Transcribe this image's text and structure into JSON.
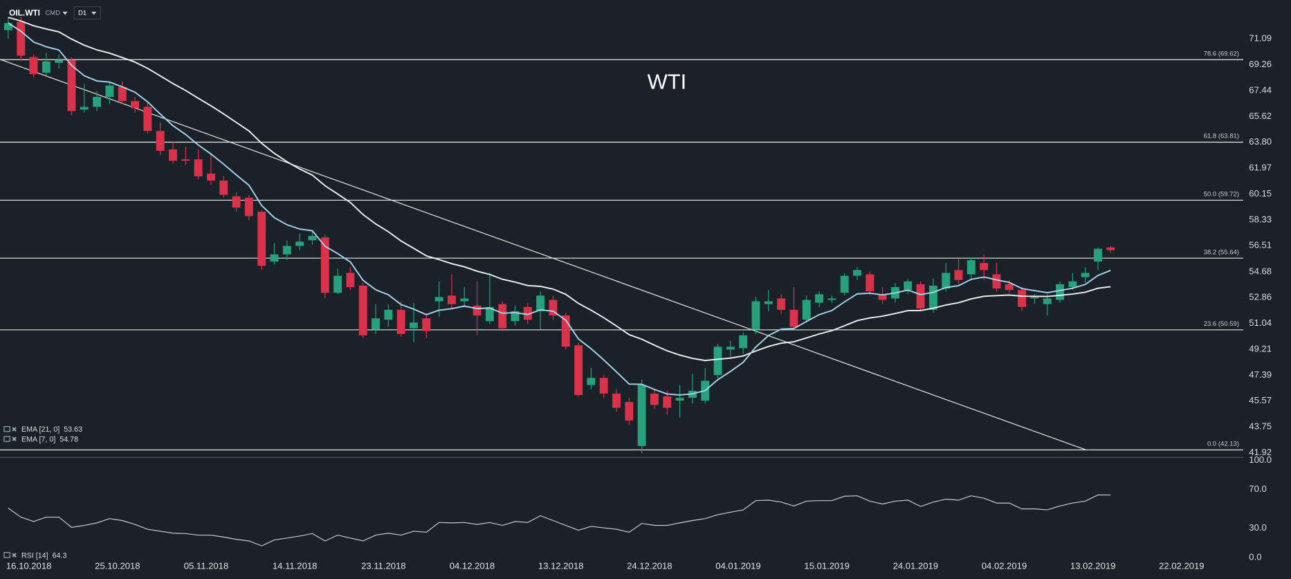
{
  "chart_data": [
    {
      "type": "candlestick",
      "title": "WTI",
      "symbol": "OIL.WTI",
      "market": "CMD",
      "timeframe": "D1",
      "up_color": "#26a17b",
      "down_color": "#d9324a",
      "open": [
        71.7,
        72.3,
        69.8,
        68.7,
        69.4,
        69.6,
        66.1,
        66.3,
        67.0,
        67.7,
        66.7,
        66.3,
        64.6,
        63.3,
        62.6,
        62.6,
        61.6,
        61.1,
        60.0,
        59.9,
        58.9,
        55.4,
        55.9,
        56.5,
        56.9,
        57.1,
        53.2,
        54.6,
        53.7,
        50.6,
        51.3,
        52.0,
        50.7,
        51.4,
        52.6,
        53.0,
        52.6,
        52.3,
        51.2,
        52.4,
        51.2,
        52.2,
        51.9,
        52.7,
        51.6,
        49.5,
        46.7,
        47.2,
        46.1,
        45.5,
        42.4,
        46.1,
        45.9,
        45.6,
        45.8,
        45.6,
        47.4,
        49.2,
        49.3,
        50.6,
        52.4,
        52.8,
        52.0,
        51.3,
        52.5,
        52.7,
        53.2,
        54.4,
        54.5,
        53.1,
        52.8,
        53.4,
        53.8,
        52.0,
        53.5,
        54.8,
        54.5,
        55.3,
        54.5,
        53.8,
        53.4,
        52.8,
        52.4,
        52.7,
        53.6,
        54.3,
        55.4,
        56.4
      ],
      "high": [
        72.6,
        72.6,
        70.0,
        70.1,
        70.0,
        69.8,
        67.9,
        67.4,
        68.0,
        68.1,
        67.0,
        66.6,
        65.2,
        63.9,
        63.5,
        63.3,
        63.0,
        61.4,
        60.3,
        60.1,
        59.0,
        56.7,
        56.9,
        57.4,
        57.5,
        57.3,
        54.9,
        55.0,
        53.9,
        52.4,
        52.4,
        52.6,
        52.5,
        51.7,
        54.0,
        54.5,
        53.6,
        54.0,
        54.6,
        52.6,
        52.3,
        52.5,
        53.3,
        53.0,
        51.8,
        49.7,
        47.9,
        47.4,
        46.4,
        45.8,
        47.1,
        46.4,
        46.3,
        46.7,
        47.5,
        47.9,
        49.6,
        49.8,
        50.4,
        52.9,
        53.4,
        53.1,
        53.6,
        53.0,
        53.3,
        53.0,
        54.6,
        55.0,
        54.7,
        53.6,
        53.9,
        54.2,
        54.0,
        54.2,
        55.3,
        55.6,
        55.7,
        55.9,
        55.3,
        54.1,
        53.6,
        53.1,
        53.1,
        54.0,
        54.6,
        55.0,
        56.4,
        56.5
      ],
      "low": [
        71.1,
        69.5,
        68.4,
        68.5,
        69.0,
        65.7,
        65.9,
        66.0,
        66.5,
        66.5,
        65.9,
        64.4,
        62.9,
        62.3,
        62.2,
        61.2,
        60.8,
        59.9,
        58.9,
        58.3,
        54.8,
        55.2,
        55.5,
        56.2,
        56.6,
        52.8,
        53.1,
        53.4,
        50.0,
        50.3,
        50.8,
        50.1,
        49.7,
        50.0,
        51.5,
        52.1,
        52.2,
        50.2,
        51.0,
        50.5,
        50.9,
        51.0,
        50.6,
        51.3,
        49.2,
        45.9,
        46.4,
        45.8,
        44.8,
        43.9,
        41.9,
        45.0,
        44.6,
        44.4,
        45.4,
        45.4,
        47.2,
        48.7,
        48.9,
        50.3,
        51.9,
        51.7,
        50.6,
        51.1,
        52.2,
        52.5,
        53.0,
        54.1,
        53.0,
        52.4,
        52.5,
        53.1,
        51.9,
        51.8,
        53.3,
        53.8,
        54.2,
        54.1,
        53.3,
        53.2,
        51.9,
        52.4,
        51.6,
        52.5,
        53.4,
        53.9,
        54.8,
        56.0
      ],
      "close": [
        72.2,
        69.9,
        68.6,
        69.5,
        69.6,
        66.0,
        66.3,
        67.0,
        67.8,
        66.7,
        66.2,
        64.6,
        63.2,
        62.5,
        62.5,
        61.4,
        61.1,
        60.1,
        59.2,
        58.6,
        55.1,
        55.9,
        56.5,
        56.8,
        57.2,
        53.2,
        54.4,
        53.6,
        50.2,
        51.4,
        52.0,
        50.3,
        51.1,
        50.5,
        52.9,
        52.4,
        52.8,
        51.6,
        52.2,
        50.7,
        51.9,
        51.3,
        53.0,
        51.6,
        49.4,
        46.0,
        47.2,
        46.1,
        45.1,
        44.2,
        46.7,
        45.3,
        45.1,
        45.8,
        46.3,
        47.0,
        49.4,
        49.4,
        50.2,
        52.6,
        52.6,
        52.0,
        50.8,
        52.7,
        53.1,
        52.8,
        54.4,
        54.8,
        53.3,
        52.7,
        53.6,
        54.0,
        52.1,
        53.7,
        54.6,
        54.1,
        55.5,
        54.8,
        53.5,
        53.4,
        52.2,
        52.9,
        52.8,
        53.8,
        54.0,
        54.6,
        56.3,
        56.2
      ],
      "series": [
        {
          "name": "EMA [21, 0]",
          "color": "#f2f2f2",
          "values": [
            72.6,
            72.35,
            72.01,
            71.78,
            71.58,
            71.07,
            70.64,
            70.31,
            70.08,
            69.77,
            69.45,
            69.01,
            68.48,
            67.94,
            67.45,
            66.9,
            66.37,
            65.8,
            65.2,
            64.6,
            63.73,
            63.02,
            62.43,
            61.92,
            61.49,
            60.74,
            60.16,
            59.56,
            58.71,
            58.05,
            57.5,
            56.85,
            56.33,
            55.8,
            55.54,
            55.25,
            55.03,
            54.72,
            54.49,
            54.15,
            53.95,
            53.71,
            53.65,
            53.46,
            53.09,
            52.45,
            51.97,
            51.44,
            50.86,
            50.25,
            49.93,
            49.51,
            49.11,
            48.81,
            48.58,
            48.43,
            48.52,
            48.6,
            48.75,
            49.1,
            49.42,
            49.65,
            49.75,
            50.02,
            50.3,
            50.53,
            50.88,
            51.24,
            51.43,
            51.55,
            51.74,
            51.94,
            51.95,
            52.11,
            52.34,
            52.5,
            52.77,
            52.95,
            53.0,
            53.04,
            52.96,
            52.95,
            52.94,
            53.02,
            53.11,
            53.24,
            53.52,
            53.63
          ]
        },
        {
          "name": "EMA [7, 0]",
          "color": "#a9d6ee",
          "values": [
            72.2,
            71.63,
            70.87,
            70.53,
            70.3,
            69.22,
            68.49,
            68.12,
            68.04,
            67.71,
            67.33,
            66.65,
            65.79,
            64.97,
            64.35,
            63.61,
            62.98,
            62.26,
            61.5,
            60.77,
            59.35,
            58.49,
            57.99,
            57.69,
            57.57,
            56.48,
            55.96,
            55.37,
            54.08,
            53.41,
            53.06,
            52.37,
            52.05,
            51.66,
            51.97,
            52.08,
            52.26,
            52.09,
            52.12,
            51.76,
            51.8,
            51.67,
            52.0,
            51.9,
            51.27,
            49.95,
            49.26,
            48.47,
            47.63,
            46.77,
            46.75,
            46.39,
            46.07,
            46.0,
            46.08,
            46.31,
            47.08,
            47.66,
            48.3,
            49.38,
            50.19,
            50.64,
            50.68,
            51.18,
            51.66,
            51.95,
            52.56,
            53.12,
            53.17,
            53.05,
            53.19,
            53.39,
            53.07,
            53.23,
            53.57,
            53.7,
            54.15,
            54.31,
            54.11,
            53.93,
            53.5,
            53.35,
            53.21,
            53.36,
            53.52,
            53.79,
            54.42,
            54.78
          ]
        }
      ],
      "levels": [
        {
          "label": "78.6 (69.62)",
          "value": 69.62
        },
        {
          "label": "61.8 (63.81)",
          "value": 63.81
        },
        {
          "label": "50.0 (59.72)",
          "value": 59.72
        },
        {
          "label": "38.2 (55.64)",
          "value": 55.64
        },
        {
          "label": "23.6 (50.59)",
          "value": 50.59
        },
        {
          "label": "0.0 (42.13)",
          "value": 42.13
        }
      ],
      "trendline": {
        "x": [
          -0.65,
          85.0
        ],
        "y": [
          69.64,
          42.15
        ]
      },
      "ylim": [
        41.6,
        72.8
      ],
      "yticks": [
        71.09,
        69.26,
        67.44,
        65.62,
        {
          "value": 63.8,
          "label": "63.80"
        },
        61.97,
        60.15,
        58.33,
        56.51,
        54.68,
        52.86,
        51.04,
        49.21,
        47.39,
        45.57,
        43.75,
        41.92
      ],
      "xtick_labels": [
        "16.10.2018",
        "25.10.2018",
        "05.11.2018",
        "14.11.2018",
        "23.11.2018",
        "04.12.2018",
        "13.12.2018",
        "24.12.2018",
        "04.01.2019",
        "15.01.2019",
        "24.01.2019",
        "04.02.2019",
        "13.02.2019",
        "22.02.2019"
      ]
    },
    {
      "type": "line",
      "series": [
        {
          "name": "RSI [14]",
          "color": "#c8ccd0",
          "values": [
            50.8,
            41.5,
            37,
            41.5,
            41.5,
            31,
            33,
            35.6,
            40,
            38,
            34,
            29,
            27,
            25,
            24.6,
            23,
            23,
            21,
            18.6,
            17,
            11.9,
            18,
            20,
            22,
            24.6,
            17,
            23,
            20,
            17,
            23,
            25,
            23,
            27,
            26,
            36,
            35.6,
            36,
            34,
            36,
            33,
            37,
            36,
            43,
            38,
            33,
            28,
            32,
            30.5,
            29,
            26,
            35,
            33,
            33,
            35.6,
            38,
            40,
            44,
            46.6,
            49,
            58.5,
            59,
            57,
            53,
            58,
            58.5,
            58.5,
            63,
            63.5,
            58,
            55,
            58,
            59,
            52.5,
            57,
            60,
            59,
            63.5,
            61,
            56,
            56,
            50,
            50,
            49,
            53,
            56,
            58,
            64.4,
            64.3
          ]
        }
      ],
      "ylim": [
        0,
        100
      ],
      "yticks": [
        {
          "value": 100,
          "label": "100.0"
        },
        {
          "value": 70,
          "label": "70.0"
        },
        {
          "value": 30,
          "label": "30.0"
        },
        {
          "value": 0,
          "label": "0.0"
        }
      ]
    }
  ]
}
